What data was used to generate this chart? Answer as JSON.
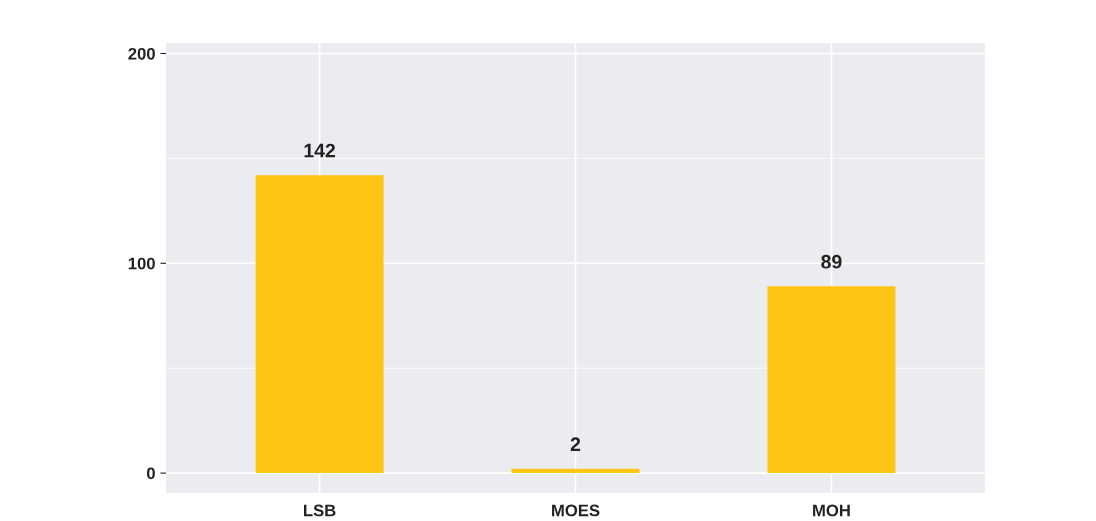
{
  "chart_data": {
    "type": "bar",
    "categories": [
      "LSB",
      "MOES",
      "MOH"
    ],
    "values": [
      142,
      2,
      89
    ],
    "color": "#fdc414",
    "ylim": [
      -9.5,
      205
    ],
    "yticks": [
      0,
      100,
      200
    ],
    "grid": true,
    "data_labels": true,
    "ref_lines": [
      {
        "axis": "y",
        "value": 50,
        "color": "#ffffff"
      },
      {
        "axis": "y",
        "value": 150,
        "color": "#ffffff"
      }
    ]
  }
}
